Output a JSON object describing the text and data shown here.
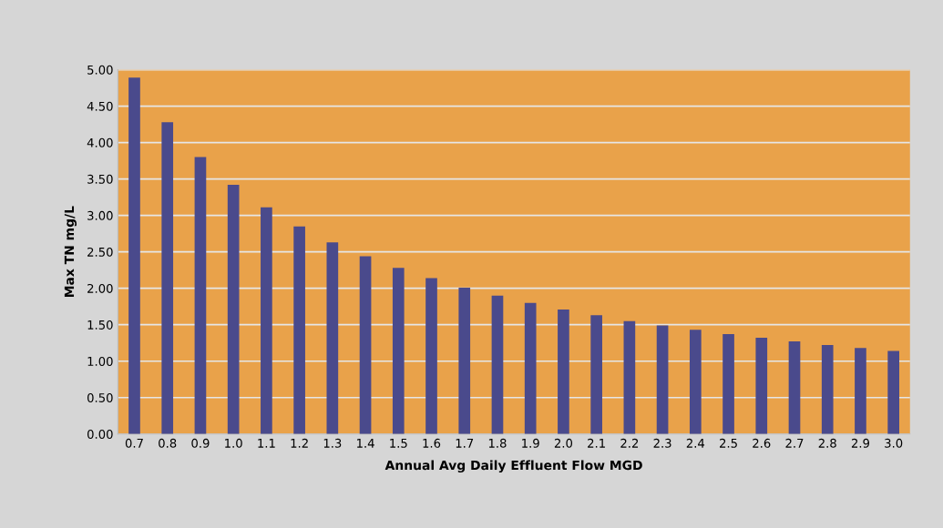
{
  "chart_data": {
    "type": "bar",
    "xlabel": "Annual Avg Daily Effluent Flow MGD",
    "ylabel": "Max TN mg/L",
    "categories": [
      "0.7",
      "0.8",
      "0.9",
      "1.0",
      "1.1",
      "1.2",
      "1.3",
      "1.4",
      "1.5",
      "1.6",
      "1.7",
      "1.8",
      "1.9",
      "2.0",
      "2.1",
      "2.2",
      "2.3",
      "2.4",
      "2.5",
      "2.6",
      "2.7",
      "2.8",
      "2.9",
      "3.0"
    ],
    "values": [
      4.89,
      4.28,
      3.8,
      3.42,
      3.11,
      2.85,
      2.63,
      2.44,
      2.28,
      2.14,
      2.01,
      1.9,
      1.8,
      1.71,
      1.63,
      1.55,
      1.49,
      1.43,
      1.37,
      1.32,
      1.27,
      1.22,
      1.18,
      1.14
    ],
    "color": "#4a4a8c",
    "ylim": [
      0,
      5
    ],
    "yticks": [
      {
        "value": 0,
        "label": "0.00"
      },
      {
        "value": 0.5,
        "label": "0.50"
      },
      {
        "value": 1,
        "label": "1.00"
      },
      {
        "value": 1.5,
        "label": "1.50"
      },
      {
        "value": 2,
        "label": "2.00"
      },
      {
        "value": 2.5,
        "label": "2.50"
      },
      {
        "value": 3,
        "label": "3.00"
      },
      {
        "value": 3.5,
        "label": "3.50"
      },
      {
        "value": 4,
        "label": "4.00"
      },
      {
        "value": 4.5,
        "label": "4.50"
      },
      {
        "value": 5,
        "label": "5.00"
      }
    ],
    "grid": "y"
  }
}
